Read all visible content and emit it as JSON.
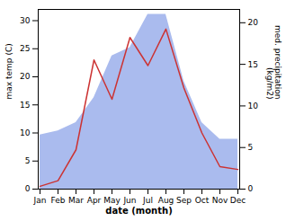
{
  "chart_data": {
    "type": "line",
    "xlabel": "date (month)",
    "ylabel": "max temp (C)",
    "y2label": "med. precipitation\n(kg/m2)",
    "categories": [
      "Jan",
      "Feb",
      "Mar",
      "Apr",
      "May",
      "Jun",
      "Jul",
      "Aug",
      "Sep",
      "Oct",
      "Nov",
      "Dec"
    ],
    "series": [
      {
        "type": "area",
        "axis": "y2",
        "color": "#aabbee",
        "values": [
          6.5,
          7.0,
          8.0,
          11.0,
          16.0,
          17.0,
          21.0,
          21.0,
          13.0,
          8.0,
          6.0,
          6.0
        ]
      },
      {
        "type": "line",
        "color": "#cc3333",
        "values": [
          0.5,
          1.5,
          7.0,
          23.0,
          16.0,
          27.0,
          22.0,
          28.5,
          18.0,
          10.0,
          4.0,
          3.5
        ]
      }
    ],
    "ylim": [
      0,
      32
    ],
    "yticks": [
      0,
      5,
      10,
      15,
      20,
      25,
      30
    ],
    "y2lim": [
      0,
      21.6
    ],
    "y2ticks": [
      0,
      5,
      10,
      15,
      20
    ]
  }
}
